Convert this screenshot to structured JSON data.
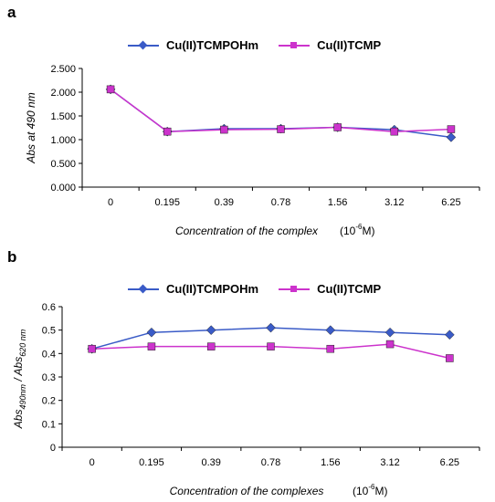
{
  "chart_data": [
    {
      "panel": "a",
      "type": "line",
      "categories": [
        "0",
        "0.195",
        "0.39",
        "0.78",
        "1.56",
        "3.12",
        "6.25"
      ],
      "series": [
        {
          "name": "Cu(II)TCMPOHm",
          "values": [
            2.06,
            1.17,
            1.23,
            1.23,
            1.26,
            1.21,
            1.05
          ],
          "color": "#3a5bc7",
          "marker": "diamond"
        },
        {
          "name": "Cu(II)TCMP",
          "values": [
            2.06,
            1.17,
            1.21,
            1.22,
            1.26,
            1.17,
            1.22
          ],
          "color": "#cc33cc",
          "marker": "square"
        }
      ],
      "ylabel": "Abs at 490 nm",
      "xlabel": "Concentration of the complex",
      "xunit_prefix": "(10",
      "xunit_exp": "-6",
      "xunit_suffix": "M)",
      "ylim": [
        0,
        2.5
      ],
      "yticks": [
        "0.000",
        "0.500",
        "1.000",
        "1.500",
        "2.000",
        "2.500"
      ],
      "legend": "top-center",
      "grid": false
    },
    {
      "panel": "b",
      "type": "line",
      "categories": [
        "0",
        "0.195",
        "0.39",
        "0.78",
        "1.56",
        "3.12",
        "6.25"
      ],
      "series": [
        {
          "name": "Cu(II)TCMPOHm",
          "values": [
            0.42,
            0.49,
            0.5,
            0.51,
            0.5,
            0.49,
            0.48
          ],
          "color": "#3a5bc7",
          "marker": "diamond"
        },
        {
          "name": "Cu(II)TCMP",
          "values": [
            0.42,
            0.43,
            0.43,
            0.43,
            0.42,
            0.44,
            0.38
          ],
          "color": "#cc33cc",
          "marker": "square"
        }
      ],
      "ylabel_main1": "Abs",
      "ylabel_sub1": "490nm",
      "ylabel_sep": " / Abs",
      "ylabel_sub2": "620 nm",
      "xlabel": "Concentration of the complexes",
      "xunit_prefix": "(10",
      "xunit_exp": "-6",
      "xunit_suffix": "M)",
      "ylim": [
        0,
        0.6
      ],
      "yticks": [
        "0",
        "0.1",
        "0.2",
        "0.3",
        "0.4",
        "0.5",
        "0.6"
      ],
      "legend": "top-center",
      "grid": false
    }
  ]
}
